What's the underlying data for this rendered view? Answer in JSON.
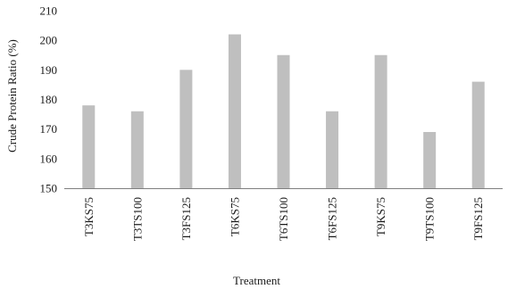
{
  "chart_data": {
    "type": "bar",
    "categories": [
      "T3KS75",
      "T3TS100",
      "T3FS125",
      "T6KS75",
      "T6TS100",
      "T6FS125",
      "T9KS75",
      "T9TS100",
      "T9FS125"
    ],
    "values": [
      178,
      176,
      190,
      202,
      195,
      176,
      195,
      169,
      186
    ],
    "xlabel": "Treatment",
    "ylabel": "Crude Protein Ratio (%)",
    "ylim": [
      150,
      210
    ],
    "yticks": [
      150,
      160,
      170,
      180,
      190,
      200,
      210
    ],
    "grid": false,
    "legend": "none",
    "colors": {
      "bar": "#bfbfbf",
      "axis": "#7f7f7f",
      "text": "#1a1a1a"
    }
  }
}
